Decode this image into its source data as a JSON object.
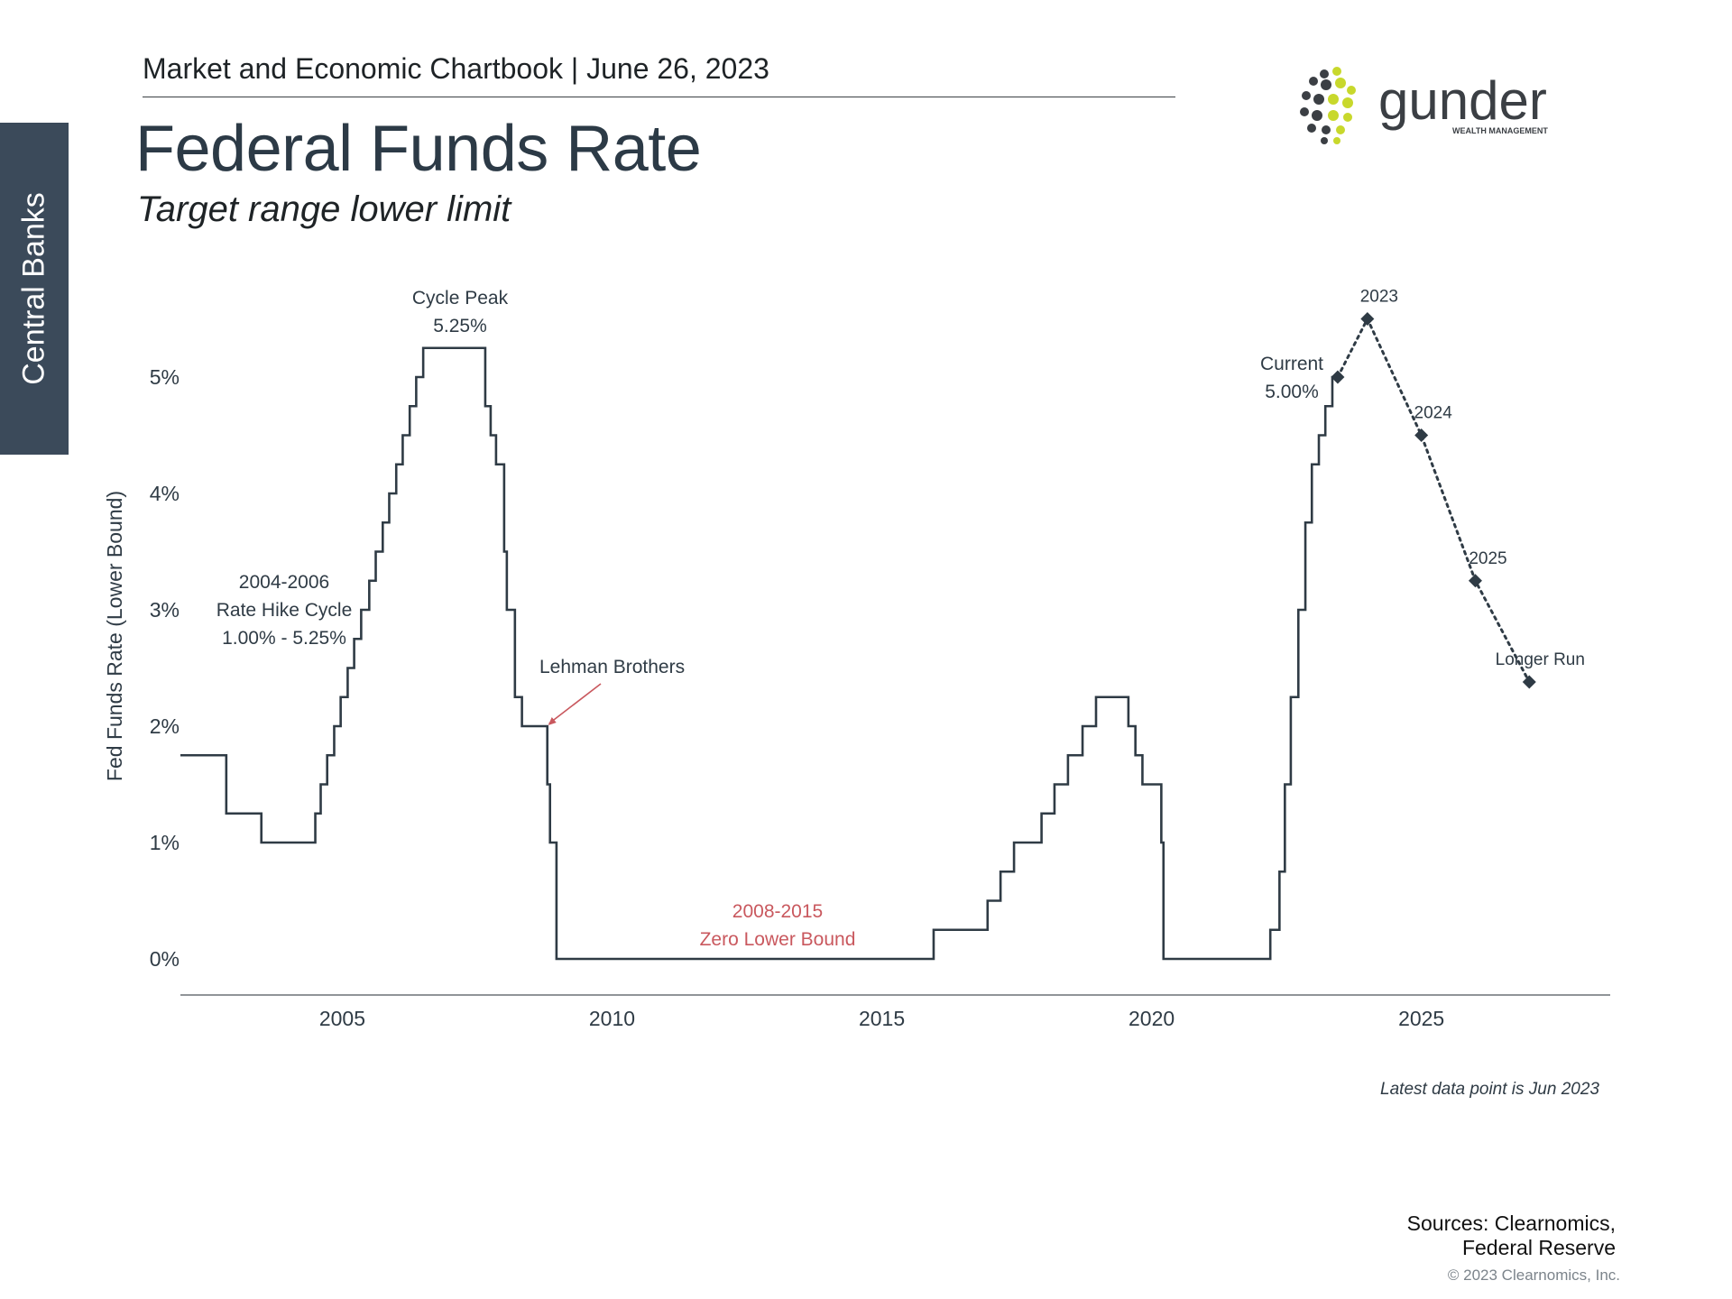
{
  "header": {
    "chartbook": "Market and Economic Chartbook | June 26, 2023",
    "side_tab": "Central Banks"
  },
  "logo": {
    "name": "gunder",
    "tagline": "WEALTH MANAGEMENT",
    "colors": {
      "dark": "#3b3f44",
      "accent": "#c8d82c"
    }
  },
  "footer": {
    "note": "Latest data point is Jun 2023",
    "sources_line1": "Sources: Clearnomics,",
    "sources_line2": "Federal Reserve",
    "copyright": "© 2023 Clearnomics, Inc."
  },
  "chart_data": {
    "type": "line",
    "title": "Federal Funds Rate",
    "subtitle": "Target range lower limit",
    "ylabel": "Fed Funds Rate (Lower Bound)",
    "xlabel": "",
    "xlim": [
      2002,
      2028.5
    ],
    "ylim": [
      -0.3,
      5.6
    ],
    "yticks": [
      0,
      1,
      2,
      3,
      4,
      5
    ],
    "ytick_labels": [
      "0%",
      "1%",
      "2%",
      "3%",
      "4%",
      "5%"
    ],
    "xticks": [
      2005,
      2010,
      2015,
      2020,
      2025
    ],
    "xtick_labels": [
      "2005",
      "2010",
      "2015",
      "2020",
      "2025"
    ],
    "grid": false,
    "colors": {
      "line": "#2f3b45",
      "projection": "#2f3b45",
      "highlight": "#c9585e"
    },
    "series": [
      {
        "name": "",
        "style": "step",
        "points": [
          [
            2002.0,
            1.75
          ],
          [
            2002.85,
            1.25
          ],
          [
            2003.5,
            1.0
          ],
          [
            2004.5,
            1.25
          ],
          [
            2004.6,
            1.5
          ],
          [
            2004.72,
            1.75
          ],
          [
            2004.85,
            2.0
          ],
          [
            2004.97,
            2.25
          ],
          [
            2005.1,
            2.5
          ],
          [
            2005.22,
            2.75
          ],
          [
            2005.35,
            3.0
          ],
          [
            2005.5,
            3.25
          ],
          [
            2005.62,
            3.5
          ],
          [
            2005.75,
            3.75
          ],
          [
            2005.87,
            4.0
          ],
          [
            2006.0,
            4.25
          ],
          [
            2006.12,
            4.5
          ],
          [
            2006.25,
            4.75
          ],
          [
            2006.37,
            5.0
          ],
          [
            2006.5,
            5.25
          ],
          [
            2007.65,
            4.75
          ],
          [
            2007.75,
            4.5
          ],
          [
            2007.85,
            4.25
          ],
          [
            2008.0,
            3.5
          ],
          [
            2008.05,
            3.0
          ],
          [
            2008.2,
            2.25
          ],
          [
            2008.33,
            2.0
          ],
          [
            2008.8,
            1.5
          ],
          [
            2008.85,
            1.0
          ],
          [
            2008.97,
            0.0
          ],
          [
            2015.96,
            0.25
          ],
          [
            2016.96,
            0.5
          ],
          [
            2017.2,
            0.75
          ],
          [
            2017.45,
            1.0
          ],
          [
            2017.96,
            1.25
          ],
          [
            2018.2,
            1.5
          ],
          [
            2018.45,
            1.75
          ],
          [
            2018.72,
            2.0
          ],
          [
            2018.97,
            2.25
          ],
          [
            2019.57,
            2.0
          ],
          [
            2019.7,
            1.75
          ],
          [
            2019.83,
            1.5
          ],
          [
            2020.18,
            1.0
          ],
          [
            2020.22,
            0.0
          ],
          [
            2022.2,
            0.25
          ],
          [
            2022.37,
            0.75
          ],
          [
            2022.47,
            1.5
          ],
          [
            2022.58,
            2.25
          ],
          [
            2022.72,
            3.0
          ],
          [
            2022.85,
            3.75
          ],
          [
            2022.97,
            4.25
          ],
          [
            2023.1,
            4.5
          ],
          [
            2023.22,
            4.75
          ],
          [
            2023.35,
            5.0
          ],
          [
            2023.45,
            5.0
          ]
        ]
      },
      {
        "name": "",
        "style": "dotted",
        "points": [
          [
            2023.45,
            5.0
          ],
          [
            2024.0,
            5.5
          ],
          [
            2025.0,
            4.5
          ],
          [
            2026.0,
            3.25
          ],
          [
            2027.0,
            2.38
          ]
        ]
      }
    ],
    "projection_labels": [
      {
        "x": 2024.0,
        "y": 5.5,
        "text": "2023"
      },
      {
        "x": 2025.0,
        "y": 4.5,
        "text": "2024"
      },
      {
        "x": 2026.0,
        "y": 3.25,
        "text": "2025"
      },
      {
        "x": 2027.0,
        "y": 2.38,
        "text": "Longer Run"
      }
    ],
    "annotations": [
      {
        "id": "cycle-peak",
        "x": 2007.1,
        "y": 5.25,
        "line1": "Cycle Peak",
        "line2": "5.25%"
      },
      {
        "id": "hike-cycle",
        "x": 2004.0,
        "y": 3.0,
        "line1": "2004-2006",
        "line2": "Rate Hike Cycle",
        "line3": "1.00% - 5.25%"
      },
      {
        "id": "lehman",
        "x": 2008.8,
        "y": 2.0,
        "text": "Lehman Brothers"
      },
      {
        "id": "zlb",
        "x": 2012.0,
        "y": 0.0,
        "line1": "2008-2015",
        "line2": "Zero Lower Bound"
      },
      {
        "id": "current",
        "x": 2023.45,
        "y": 5.0,
        "line1": "Current",
        "line2": "5.00%"
      }
    ]
  }
}
